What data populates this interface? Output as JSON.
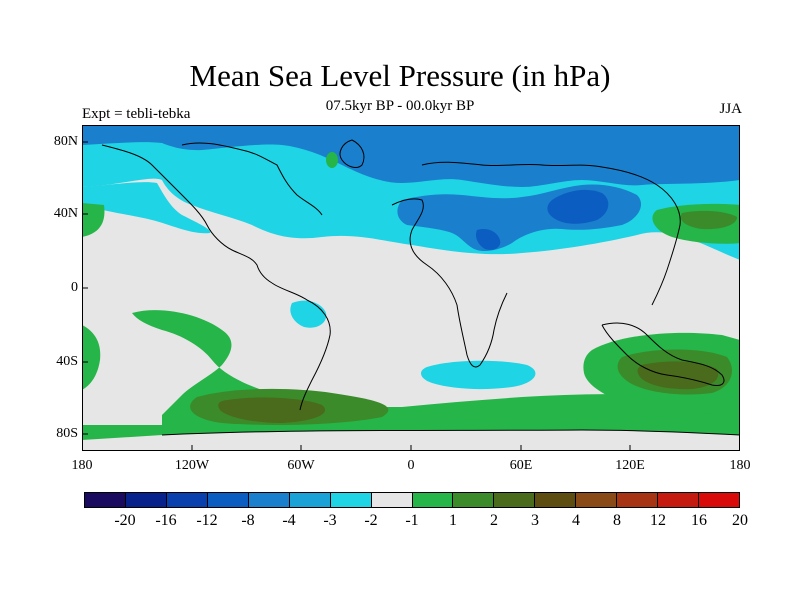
{
  "title": "Mean Sea Level Pressure (in hPa)",
  "subtitle": "07.5kyr BP - 00.0kyr BP",
  "left_label": "Expt = tebli-tebka",
  "right_label": "JJA",
  "map": {
    "lat_labels": [
      "80N",
      "40N",
      "0",
      "40S",
      "80S"
    ],
    "lon_labels": [
      "180",
      "120W",
      "60W",
      "0",
      "60E",
      "120E",
      "180"
    ],
    "lat_values": [
      80,
      40,
      0,
      -40,
      -80
    ],
    "lon_values": [
      -180,
      -120,
      -60,
      0,
      60,
      120,
      180
    ]
  },
  "colorbar": {
    "colors": [
      "#1a0a60",
      "#08228c",
      "#0a3fae",
      "#0c5dc2",
      "#1a7fcc",
      "#1aa2d6",
      "#1fd4e4",
      "#e6e6e6",
      "#26b548",
      "#3b8b2a",
      "#4a6a1c",
      "#5e4d10",
      "#8a4a18",
      "#a73414",
      "#c41a10",
      "#d80a0a"
    ],
    "labels": [
      "-20",
      "-16",
      "-12",
      "-8",
      "-4",
      "-3",
      "-2",
      "-1",
      "1",
      "2",
      "3",
      "4",
      "8",
      "12",
      "16",
      "20"
    ]
  }
}
